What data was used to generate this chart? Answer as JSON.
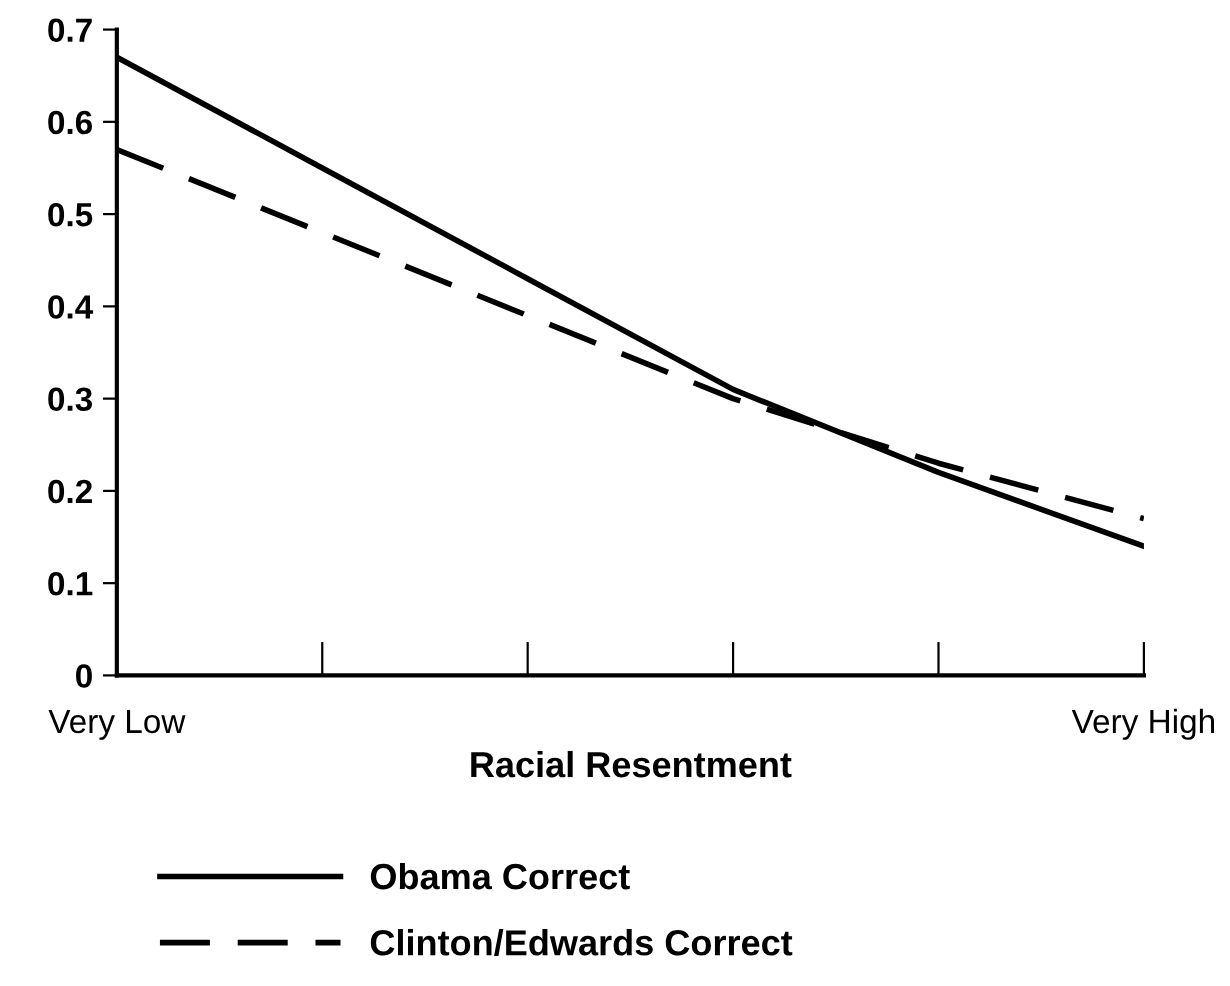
{
  "chart_data": {
    "type": "line",
    "xlabel": "Racial Resentment",
    "categories": [
      "Very Low",
      null,
      null,
      null,
      null,
      "Very High"
    ],
    "series": [
      {
        "name": "Obama Correct",
        "color": "#000000",
        "line_style": "solid",
        "values": [
          0.67,
          0.55,
          0.43,
          0.31,
          0.22,
          0.14
        ]
      },
      {
        "name": "Clinton/Edwards Correct",
        "color": "#000000",
        "line_style": "dashed",
        "values": [
          0.57,
          0.48,
          0.39,
          0.3,
          0.23,
          0.17
        ]
      }
    ],
    "ylim": [
      0,
      0.7
    ],
    "yticks": [
      0,
      0.1,
      0.2,
      0.3,
      0.4,
      0.5,
      0.6,
      0.7
    ],
    "grid": false,
    "legend": "bottom",
    "marker": "none"
  }
}
